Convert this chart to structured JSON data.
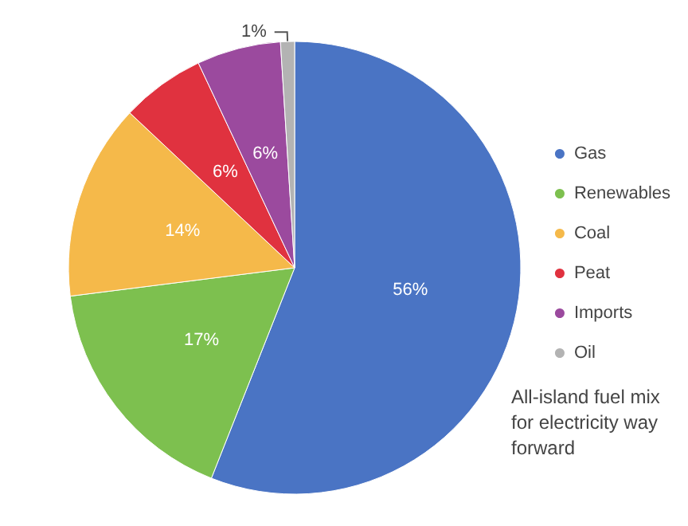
{
  "chart_data": {
    "type": "pie",
    "categories": [
      "Gas",
      "Renewables",
      "Coal",
      "Peat",
      "Imports",
      "Oil"
    ],
    "values": [
      56,
      17,
      14,
      6,
      6,
      1
    ],
    "colors": [
      "#4a74c4",
      "#7dc04f",
      "#f5b94a",
      "#e0323f",
      "#9b4a9e",
      "#b3b3b3"
    ],
    "value_labels": [
      "56%",
      "17%",
      "14%",
      "6%",
      "6%",
      "1%"
    ],
    "legend": "right",
    "annotations": [
      "All-island fuel mix for electricity way forward"
    ]
  }
}
